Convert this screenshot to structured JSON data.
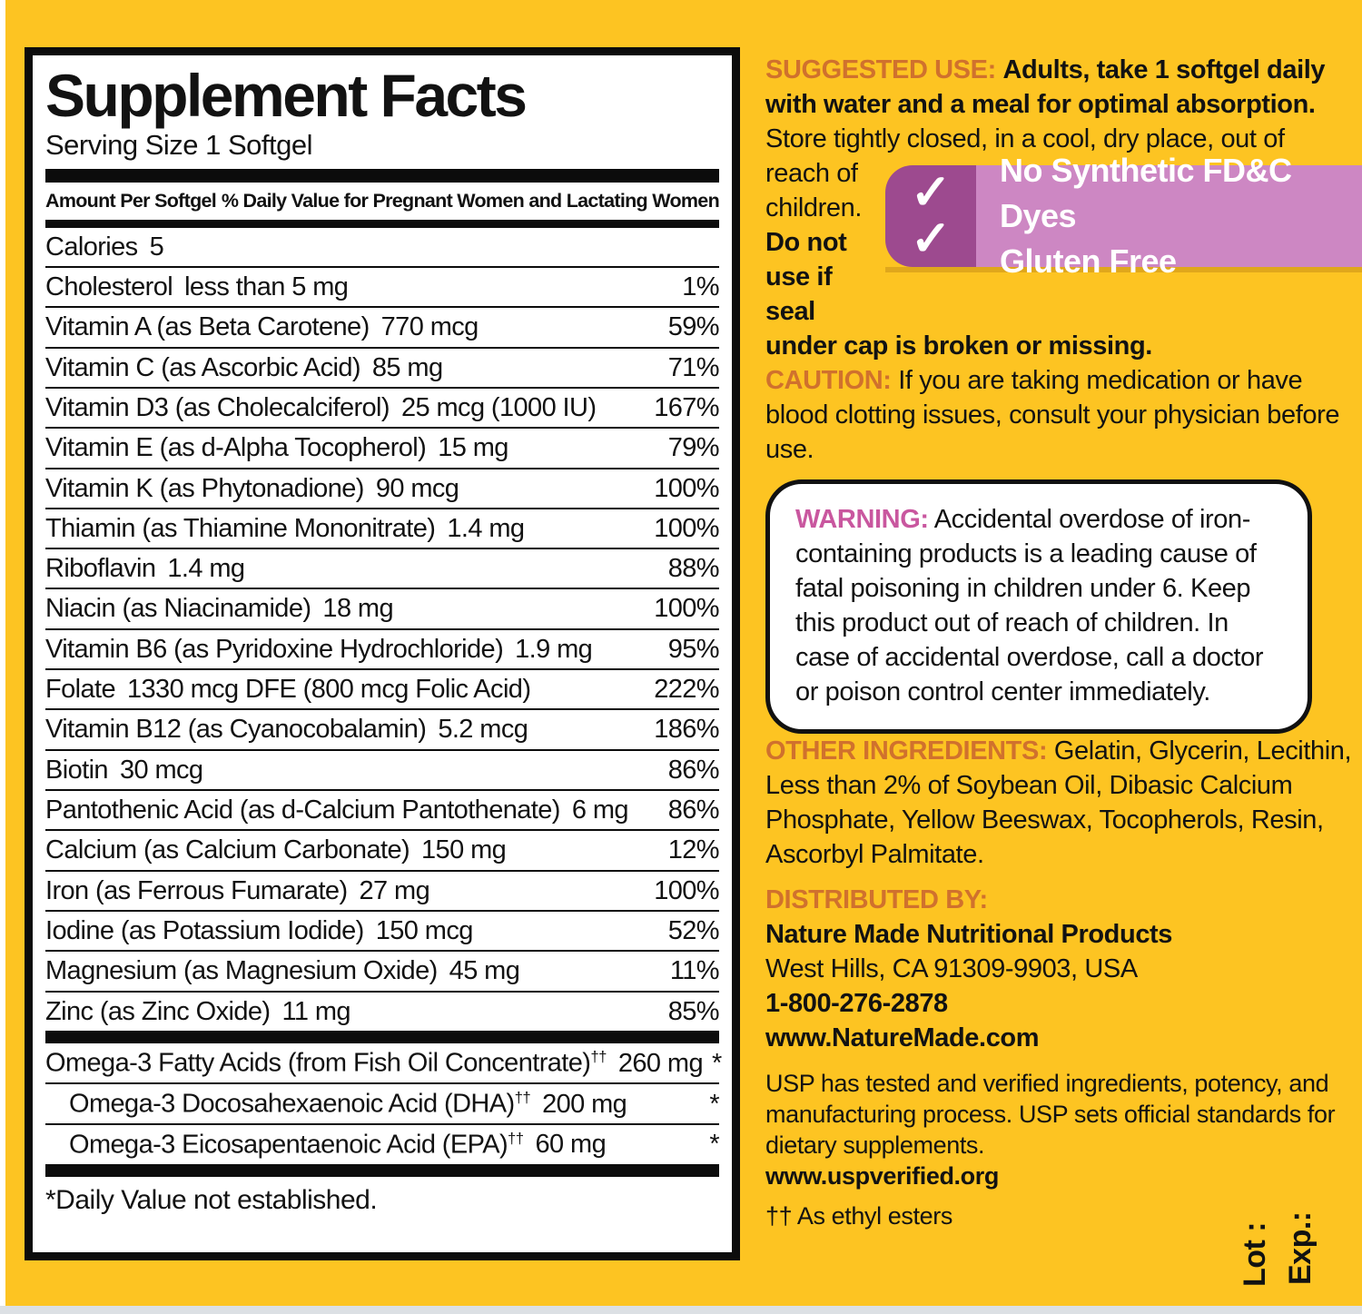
{
  "colors": {
    "label_yellow": "#FDC422",
    "heading_orange": "#D0712D",
    "warning_pink": "#C9579F",
    "banner_dark_magenta": "#9D4A8F",
    "banner_light_pink": "#CD87C3",
    "text_black": "#121212"
  },
  "panel": {
    "title": "Supplement Facts",
    "serving": "Serving Size 1 Softgel",
    "col_left": "Amount Per Softgel",
    "col_right": "% Daily Value for Pregnant Women and Lactating Women",
    "rows": [
      {
        "name": "Calories",
        "amount": "5",
        "dv": ""
      },
      {
        "name": "Cholesterol",
        "amount": "less than 5 mg",
        "dv": "1%"
      },
      {
        "name": "Vitamin A (as Beta Carotene)",
        "amount": "770 mcg",
        "dv": "59%"
      },
      {
        "name": "Vitamin C (as Ascorbic Acid)",
        "amount": "85 mg",
        "dv": "71%"
      },
      {
        "name": "Vitamin D3 (as Cholecalciferol)",
        "amount": "25 mcg (1000 IU)",
        "dv": "167%"
      },
      {
        "name": "Vitamin E (as d-Alpha Tocopherol)",
        "amount": "15 mg",
        "dv": "79%"
      },
      {
        "name": "Vitamin K (as Phytonadione)",
        "amount": "90 mcg",
        "dv": "100%"
      },
      {
        "name": "Thiamin (as Thiamine Mononitrate)",
        "amount": "1.4 mg",
        "dv": "100%"
      },
      {
        "name": "Riboflavin",
        "amount": "1.4 mg",
        "dv": "88%"
      },
      {
        "name": "Niacin (as Niacinamide)",
        "amount": "18 mg",
        "dv": "100%"
      },
      {
        "name": "Vitamin B6 (as Pyridoxine Hydrochloride)",
        "amount": "1.9 mg",
        "dv": "95%"
      },
      {
        "name": "Folate",
        "amount": "1330 mcg DFE (800 mcg Folic Acid)",
        "dv": "222%"
      },
      {
        "name": "Vitamin B12 (as Cyanocobalamin)",
        "amount": "5.2 mcg",
        "dv": "186%"
      },
      {
        "name": "Biotin",
        "amount": "30 mcg",
        "dv": "86%"
      },
      {
        "name": "Pantothenic Acid (as d-Calcium Pantothenate)",
        "amount": "6 mg",
        "dv": "86%"
      },
      {
        "name": "Calcium (as Calcium Carbonate)",
        "amount": "150 mg",
        "dv": "12%"
      },
      {
        "name": "Iron (as Ferrous Fumarate)",
        "amount": "27 mg",
        "dv": "100%"
      },
      {
        "name": "Iodine (as Potassium Iodide)",
        "amount": "150 mcg",
        "dv": "52%"
      },
      {
        "name": "Magnesium (as Magnesium Oxide)",
        "amount": "45 mg",
        "dv": "11%"
      },
      {
        "name": "Zinc (as Zinc Oxide)",
        "amount": "11 mg",
        "dv": "85%"
      }
    ],
    "omega_rows": [
      {
        "name": "Omega-3 Fatty Acids (from Fish Oil Concentrate)",
        "sup": "††",
        "amount": "260 mg",
        "dv": "*",
        "indent": false
      },
      {
        "name": "Omega-3 Docosahexaenoic Acid (DHA)",
        "sup": "††",
        "amount": "200 mg",
        "dv": "*",
        "indent": true
      },
      {
        "name": "Omega-3 Eicosapentaenoic Acid (EPA)",
        "sup": "††",
        "amount": "60 mg",
        "dv": "*",
        "indent": true
      }
    ],
    "footnote": "*Daily Value not established."
  },
  "right": {
    "suggested_use": {
      "label": "SUGGESTED USE:",
      "bold_intro": "Adults, take 1 softgel daily with water and a meal for optimal absorption.",
      "store_part1": "Store tightly closed, in a cool, dry place, out of",
      "store_part2": "reach of children.",
      "donot_part1": "Do not use if seal",
      "donot_part2": "under cap is broken or missing."
    },
    "banner": {
      "check": "✓",
      "items": [
        "No Synthetic FD&C Dyes",
        "Gluten Free"
      ]
    },
    "caution": {
      "label": "CAUTION:",
      "text": "If you are taking medication or have blood clotting issues, consult your physician before use."
    },
    "warning": {
      "label": "WARNING:",
      "text": "Accidental overdose of iron-containing products is a leading cause of fatal poisoning in children under 6. Keep this product out of reach of children. In case of accidental overdose, call a doctor or poison control center immediately."
    },
    "other_ingredients": {
      "label": "OTHER INGREDIENTS:",
      "text": "Gelatin, Glycerin, Lecithin, Less than 2% of Soybean Oil, Dibasic Calcium Phosphate, Yellow Beeswax, Tocopherols, Resin, Ascorbyl Palmitate."
    },
    "distributed": {
      "label": "DISTRIBUTED BY:",
      "company": "Nature Made Nutritional Products",
      "address": "West Hills, CA 91309-9903, USA",
      "phone": "1-800-276-2878",
      "website": "www.NatureMade.com"
    },
    "usp": {
      "text": "USP has tested and verified ingredients, potency, and manufacturing process. USP sets official standards for dietary supplements.",
      "link": "www.uspverified.org"
    },
    "ethyl_note": "†† As ethyl esters",
    "lot": "Lot :",
    "exp": "Exp.:"
  }
}
